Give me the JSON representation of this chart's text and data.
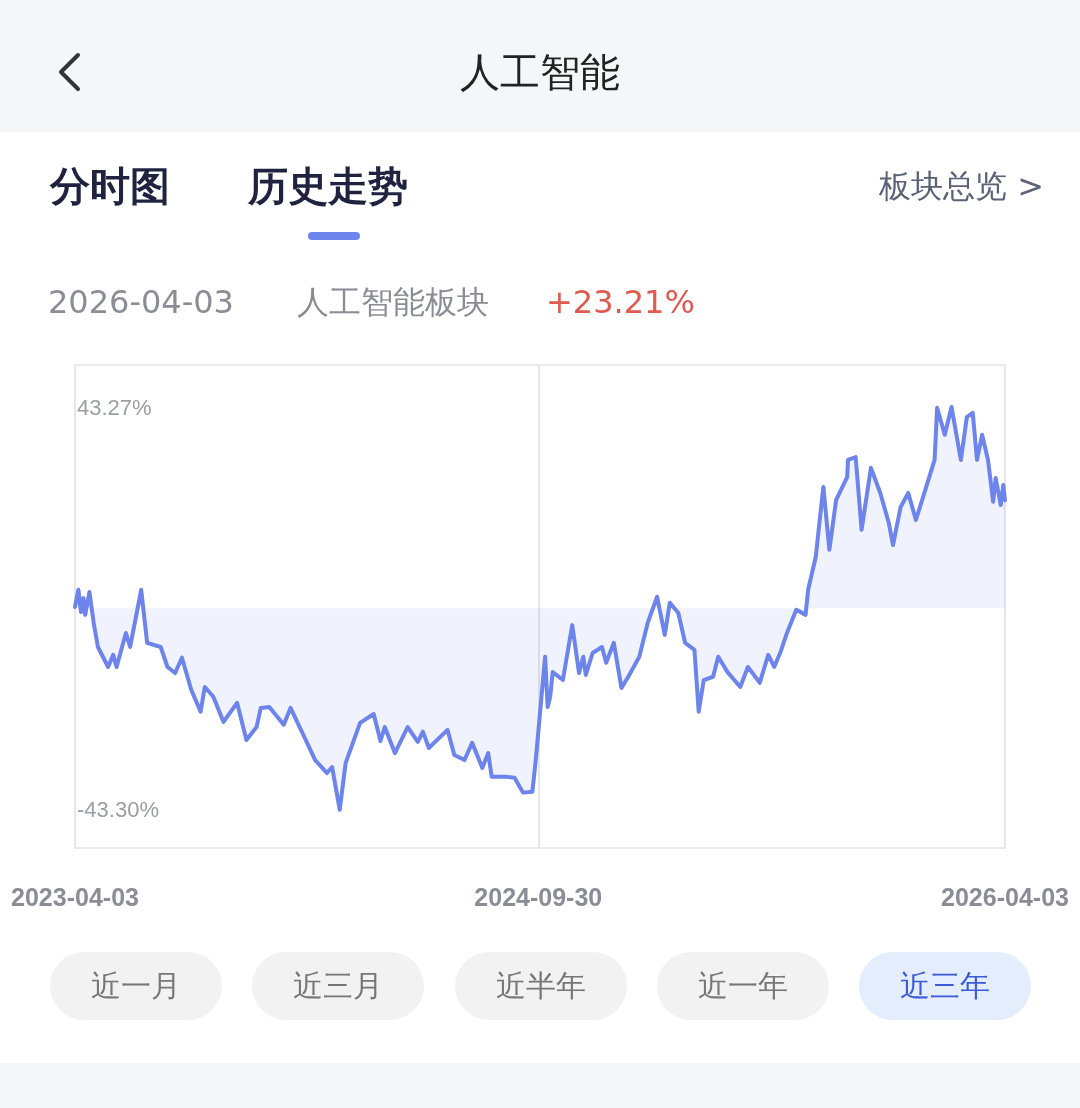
{
  "chart_data": {
    "type": "area",
    "title": "人工智能",
    "annotations": [
      "分时图",
      "历史走势",
      "板块总览 >",
      "2026-04-03",
      "人工智能板块",
      "+23.21%",
      "近一月",
      "近三月",
      "近半年",
      "近一年",
      "近三年"
    ],
    "x": [
      "2023-04-03",
      "2023-04-07",
      "2023-04-10",
      "2023-04-13",
      "2023-04-15",
      "2023-04-20",
      "2023-04-25",
      "2023-04-30",
      "2023-05-12",
      "2023-05-18",
      "2023-05-22",
      "2023-06-02",
      "2023-06-07",
      "2023-06-20",
      "2023-06-27",
      "2023-07-13",
      "2023-07-21",
      "2023-07-30",
      "2023-08-07",
      "2023-08-18",
      "2023-08-29",
      "2023-09-03",
      "2023-09-13",
      "2023-09-25",
      "2023-10-11",
      "2023-10-22",
      "2023-11-03",
      "2023-11-08",
      "2023-11-18",
      "2023-12-05",
      "2023-12-13",
      "2023-12-31",
      "2024-01-11",
      "2024-01-25",
      "2024-01-31",
      "2024-02-09",
      "2024-02-16",
      "2024-03-04",
      "2024-03-20",
      "2024-03-28",
      "2024-04-02",
      "2024-04-14",
      "2024-04-29",
      "2024-05-11",
      "2024-05-17",
      "2024-05-24",
      "2024-06-15",
      "2024-06-23",
      "2024-07-05",
      "2024-07-14",
      "2024-07-26",
      "2024-08-02",
      "2024-08-06",
      "2024-08-23",
      "2024-09-02",
      "2024-09-12",
      "2024-09-23",
      "2024-09-27",
      "2024-10-08",
      "2024-10-11",
      "2024-10-14",
      "2024-10-17",
      "2024-10-29",
      "2024-11-09",
      "2024-11-17",
      "2024-11-22",
      "2024-11-25",
      "2024-12-03",
      "2024-12-14",
      "2024-12-19",
      "2024-12-28",
      "2025-01-06",
      "2025-01-14",
      "2025-01-27",
      "2025-02-06",
      "2025-02-17",
      "2025-02-26",
      "2025-03-04",
      "2025-03-14",
      "2025-03-22",
      "2025-04-02",
      "2025-04-07",
      "2025-04-13",
      "2025-04-24",
      "2025-04-30",
      "2025-05-11",
      "2025-05-26",
      "2025-06-04",
      "2025-06-18",
      "2025-06-28",
      "2025-07-05",
      "2025-07-12",
      "2025-07-20",
      "2025-07-31",
      "2025-08-11",
      "2025-08-14",
      "2025-08-23",
      "2025-08-28",
      "2025-09-01",
      "2025-09-08",
      "2025-09-16",
      "2025-09-29",
      "2025-09-30",
      "2025-10-09",
      "2025-10-16",
      "2025-10-27",
      "2025-11-07",
      "2025-11-17",
      "2025-11-22",
      "2025-12-01",
      "2025-12-10",
      "2025-12-19",
      "2025-12-30",
      "2026-01-10",
      "2026-01-13",
      "2026-01-22",
      "2026-01-30",
      "2026-02-10",
      "2026-02-17",
      "2026-02-24",
      "2026-03-01",
      "2026-03-07",
      "2026-03-14",
      "2026-03-20",
      "2026-03-23",
      "2026-03-29",
      "2026-04-01",
      "2026-04-03"
    ],
    "series": [
      {
        "color": "#6c84ec",
        "values": [
          0.3,
          4.0,
          -0.8,
          2.2,
          -1.4,
          3.5,
          -3.1,
          -8.3,
          -12.6,
          -10.0,
          -12.6,
          -5.3,
          -8.3,
          4.0,
          -7.4,
          -8.3,
          -12.6,
          -13.9,
          -10.6,
          -17.5,
          -22.2,
          -16.9,
          -19.0,
          -24.4,
          -20.3,
          -28.3,
          -25.5,
          -21.4,
          -21.2,
          -25.0,
          -21.4,
          -28.3,
          -32.6,
          -35.4,
          -34.1,
          -43.3,
          -33.2,
          -24.6,
          -22.7,
          -28.5,
          -25.5,
          -31.1,
          -25.5,
          -28.7,
          -26.5,
          -30.0,
          -26.1,
          -31.5,
          -32.6,
          -28.9,
          -34.3,
          -31.1,
          -36.2,
          -36.2,
          -36.4,
          -39.6,
          -39.4,
          -32.6,
          -10.4,
          -21.2,
          -19.0,
          -13.7,
          -15.4,
          -3.6,
          -13.9,
          -10.4,
          -14.3,
          -9.6,
          -8.3,
          -11.7,
          -7.4,
          -17.1,
          -14.7,
          -10.4,
          -3.1,
          2.5,
          -5.7,
          1.2,
          -1.0,
          -7.4,
          -8.9,
          -22.2,
          -15.4,
          -14.7,
          -10.4,
          -13.7,
          -16.9,
          -12.6,
          -16.0,
          -10.0,
          -12.6,
          -9.6,
          -5.3,
          -0.3,
          -1.4,
          4.0,
          11.1,
          19.6,
          26.1,
          12.6,
          23.3,
          28.2,
          31.9,
          32.5,
          16.9,
          30.2,
          24.8,
          18.4,
          13.6,
          21.8,
          24.8,
          19.0,
          25.4,
          31.9,
          43.1,
          37.3,
          43.27,
          31.9,
          41.1,
          42.0,
          31.9,
          37.3,
          31.9,
          22.9,
          28.0,
          22.2,
          26.5,
          23.21
        ]
      }
    ],
    "xlim": [
      "2023-04-03",
      "2026-04-03"
    ],
    "xticks": [
      "2023-04-03",
      "2024-09-30",
      "2026-04-03"
    ],
    "ylim": [
      -51.5,
      52.3
    ],
    "yticks": [
      {
        "value": 43.27,
        "label": "43.27%"
      },
      {
        "value": -43.3,
        "label": "-43.30%"
      }
    ],
    "grid": "x",
    "marker": "none",
    "line_style": "solid"
  }
}
